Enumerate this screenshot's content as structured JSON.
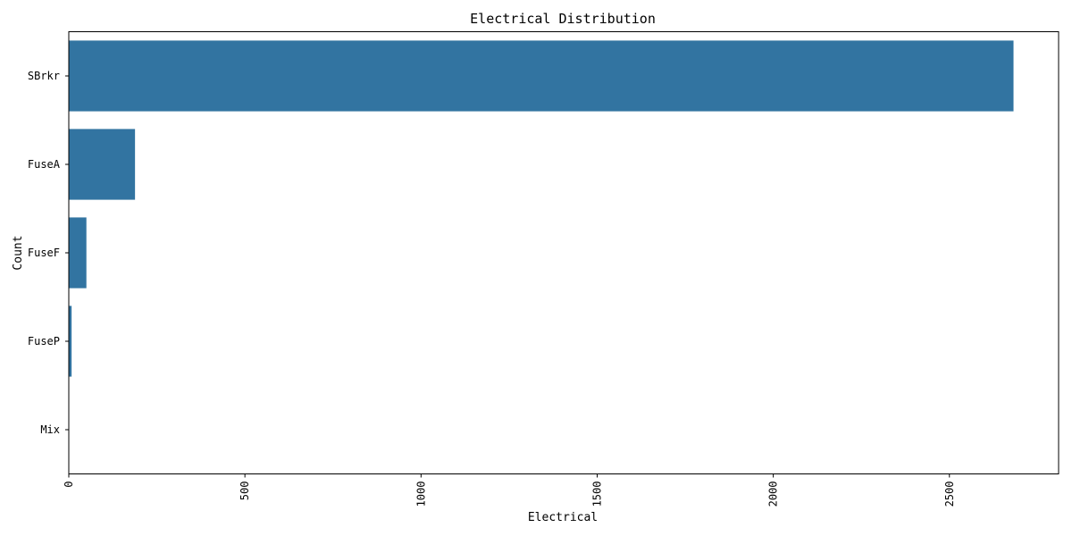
{
  "chart_data": {
    "type": "bar",
    "orientation": "horizontal",
    "title": "Electrical Distribution",
    "xlabel": "Electrical",
    "ylabel": "Count",
    "categories": [
      "SBrkr",
      "FuseA",
      "FuseF",
      "FuseP",
      "Mix"
    ],
    "values": [
      2682,
      188,
      50,
      8,
      1
    ],
    "xlim": [
      0,
      2810
    ],
    "xticks": [
      0,
      500,
      1000,
      1500,
      2000,
      2500
    ],
    "bar_color": "#3274a1",
    "grid": false
  }
}
